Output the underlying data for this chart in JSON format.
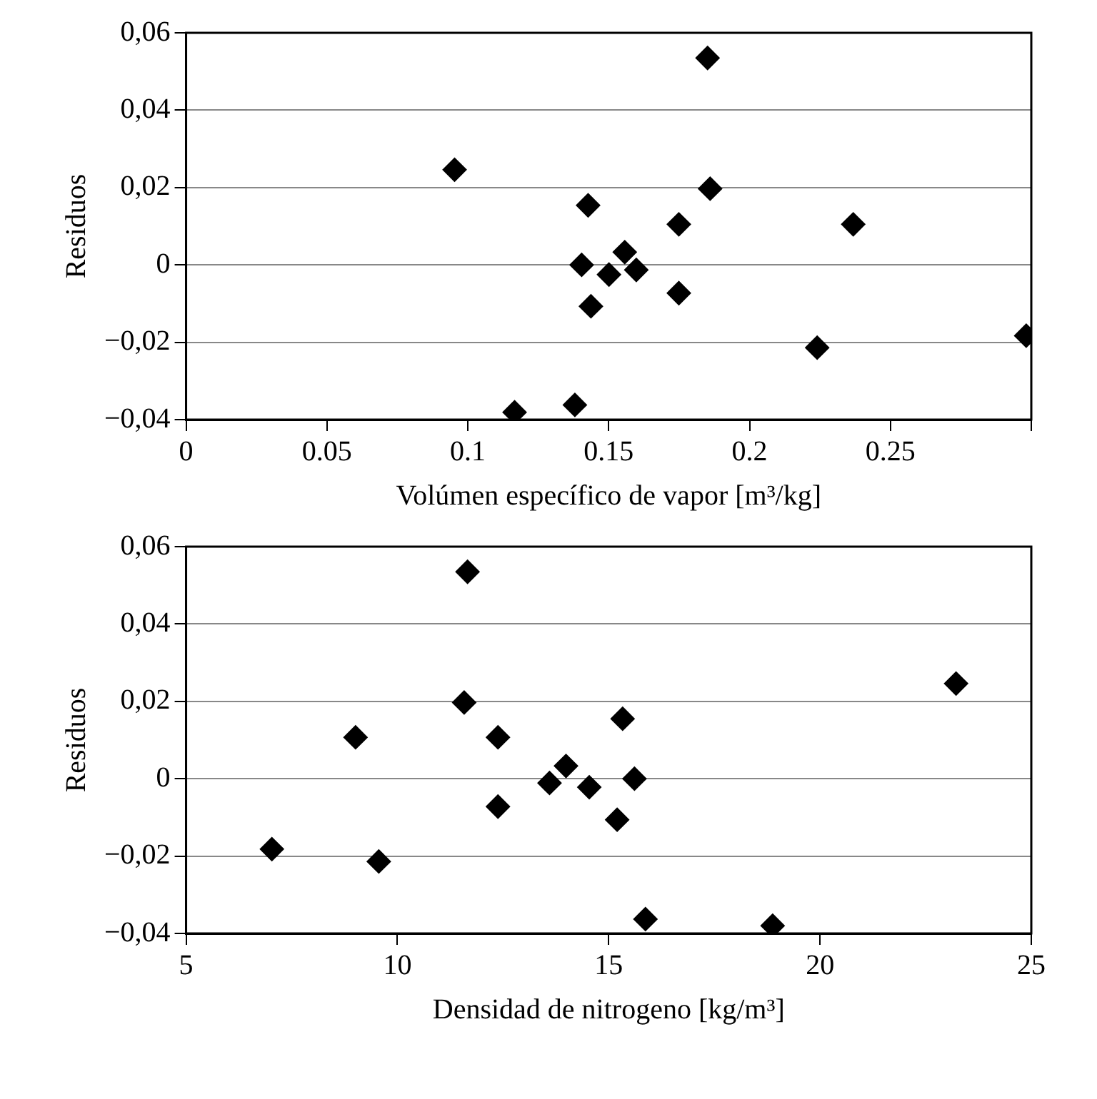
{
  "chart_data": [
    {
      "type": "scatter",
      "xlabel": "Volúmen específico de vapor [m³/kg]",
      "ylabel": "Residuos",
      "x": [
        0.0953,
        0.1166,
        0.138,
        0.1404,
        0.1427,
        0.1437,
        0.1501,
        0.1557,
        0.1598,
        0.1749,
        0.1749,
        0.1851,
        0.186,
        0.224,
        0.2368,
        0.2982
      ],
      "series": [
        {
          "color": "#000000",
          "values": [
            0.0246,
            -0.0381,
            -0.0362,
            0.0,
            0.0154,
            -0.0107,
            -0.0025,
            0.0033,
            -0.0013,
            0.0105,
            -0.0073,
            0.0535,
            0.0197,
            -0.0214,
            0.0105,
            -0.0183
          ]
        }
      ],
      "xlim": [
        0,
        0.3
      ],
      "xticks": [
        0,
        0.05,
        0.1,
        0.15,
        0.2,
        0.25,
        {
          "value": 0.3,
          "label": null
        }
      ],
      "ylim": [
        -0.04,
        0.06
      ],
      "yticks": [
        {
          "value": -0.04,
          "label": "−0,04"
        },
        {
          "value": -0.02,
          "label": "−0,02"
        },
        0,
        {
          "value": 0.02,
          "label": "0,02"
        },
        {
          "value": 0.04,
          "label": "0,04"
        },
        {
          "value": 0.06,
          "label": "0,06"
        }
      ],
      "grid": "y",
      "marker": "diamond",
      "legend": false
    },
    {
      "type": "scatter",
      "xlabel": "Densidad de nitrogeno [kg/m³]",
      "ylabel": "Residuos",
      "x": [
        7.03,
        9.01,
        9.56,
        11.66,
        11.58,
        12.38,
        12.38,
        13.6,
        13.99,
        14.54,
        15.2,
        15.33,
        15.61,
        15.87,
        18.88,
        23.22
      ],
      "series": [
        {
          "color": "#000000",
          "values": [
            -0.0182,
            0.0107,
            -0.0214,
            0.0535,
            0.0197,
            0.0107,
            -0.0072,
            -0.0011,
            0.0033,
            -0.0022,
            -0.0106,
            0.0155,
            0.0,
            -0.0363,
            -0.038,
            0.0246
          ]
        }
      ],
      "xlim": [
        5,
        25
      ],
      "xticks": [
        5,
        10,
        15,
        20,
        25
      ],
      "ylim": [
        -0.04,
        0.06
      ],
      "yticks": [
        {
          "value": -0.04,
          "label": "−0,04"
        },
        {
          "value": -0.02,
          "label": "−0,02"
        },
        0,
        {
          "value": 0.02,
          "label": "0,02"
        },
        {
          "value": 0.04,
          "label": "0,04"
        },
        {
          "value": 0.06,
          "label": "0,06"
        }
      ],
      "grid": "y",
      "marker": "diamond",
      "legend": false
    }
  ]
}
